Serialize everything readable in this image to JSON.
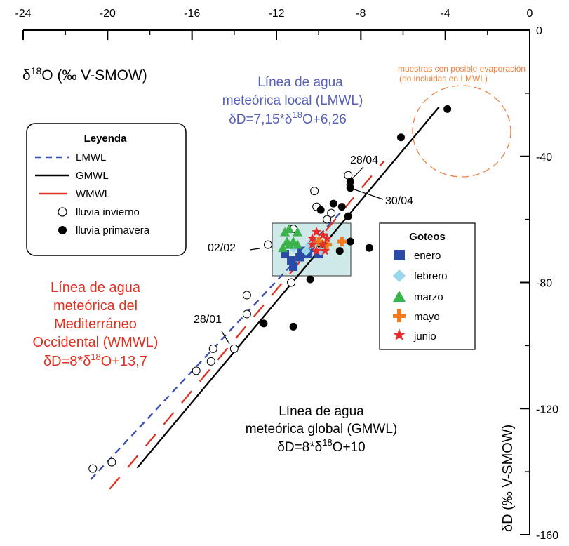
{
  "chart_data": {
    "type": "scatter",
    "x_axis": {
      "label_main": "δ",
      "label_sup": "18",
      "label_rest": "O (‰ V-SMOW)",
      "range": [
        -24,
        0
      ],
      "ticks": [
        "-24",
        "-20",
        "-16",
        "-12",
        "-8",
        "-4",
        "0"
      ]
    },
    "y_axis": {
      "label": "δD (‰ V-SMOW)",
      "range": [
        -160,
        0
      ],
      "ticks": [
        "0",
        "-40",
        "-80",
        "-120",
        "-160"
      ]
    },
    "lines": [
      {
        "name": "LMWL",
        "slope": 7.15,
        "intercept": 6.26,
        "x_range": [
          -20.8,
          -8.7
        ],
        "color": "#3b4fb0",
        "style": "dashed"
      },
      {
        "name": "GMWL",
        "slope": 8,
        "intercept": 10,
        "x_range": [
          -18.6,
          -4.3
        ],
        "color": "#000000",
        "style": "solid"
      },
      {
        "name": "WMWL",
        "slope": 8,
        "intercept": 13.7,
        "x_range": [
          -19.9,
          -6.9
        ],
        "color": "#e03020",
        "style": "long-dashed"
      }
    ],
    "annotations": {
      "lmwl": {
        "line1": "Línea de agua",
        "line2": "meteórica local (LMWL)",
        "eq_a": "δD=7,15*δ",
        "eq_sup": "18",
        "eq_b": "O+6,26",
        "color": "#5560b8"
      },
      "wmwl": {
        "line1": "Línea de agua",
        "line2": "meteórica del",
        "line3": "Mediterráneo",
        "line4": "Occidental (WMWL)",
        "eq_a": "δD=8*δ",
        "eq_sup": "18",
        "eq_b": "O+13,7",
        "color": "#e03020"
      },
      "gmwl": {
        "line1": "Línea de agua",
        "line2": "meteórica global (GMWL)",
        "eq_a": "δD=8*δ",
        "eq_sup": "18",
        "eq_b": "O+10",
        "color": "#000000"
      },
      "evaporation": {
        "line1": "muestras con posible evaporación",
        "line2": "(no incluidas en LMWL)",
        "color": "#f08040"
      },
      "dates": [
        "28/04",
        "30/04",
        "02/02",
        "28/01"
      ]
    },
    "legend": {
      "title": "Leyenda",
      "entries": [
        "LMWL",
        "GMWL",
        "WMWL",
        "lluvia invierno",
        "lluvia primavera"
      ]
    },
    "goteos_legend": {
      "title": "Goteos",
      "entries": [
        "enero",
        "febrero",
        "marzo",
        "mayo",
        "junio"
      ],
      "colors": [
        "#2b4aa8",
        "#9ad6ec",
        "#3cb34a",
        "#f07a20",
        "#e52d2d"
      ]
    },
    "box_color": "#cfe8e8",
    "lluvia_invierno": [
      [
        -20.7,
        -139
      ],
      [
        -19.8,
        -137
      ],
      [
        -15.8,
        -108
      ],
      [
        -15.1,
        -105
      ],
      [
        -15.0,
        -101
      ],
      [
        -14.0,
        -101
      ],
      [
        -13.4,
        -90
      ],
      [
        -13.4,
        -84
      ],
      [
        -12.4,
        -68
      ],
      [
        -11.3,
        -80
      ],
      [
        -11.2,
        -63
      ],
      [
        -10.2,
        -51
      ],
      [
        -10.1,
        -56
      ],
      [
        -9.6,
        -60
      ],
      [
        -9.4,
        -58
      ],
      [
        -8.6,
        -46
      ]
    ],
    "lluvia_primavera": [
      [
        -3.9,
        -25
      ],
      [
        -6.1,
        -34
      ],
      [
        -8.5,
        -48
      ],
      [
        -8.5,
        -50
      ],
      [
        -8.9,
        -56
      ],
      [
        -9.3,
        -55
      ],
      [
        -9.9,
        -57
      ],
      [
        -8.6,
        -59
      ],
      [
        -10.7,
        -70
      ],
      [
        -9.9,
        -68
      ],
      [
        -8.5,
        -67
      ],
      [
        -7.6,
        -69
      ],
      [
        -9.0,
        -70
      ],
      [
        -10.4,
        -79
      ],
      [
        -12.6,
        -93
      ],
      [
        -11.2,
        -94
      ]
    ],
    "goteos": {
      "enero": [
        [
          -11.2,
          -75
        ],
        [
          -11.3,
          -73
        ],
        [
          -10.9,
          -72
        ],
        [
          -10.8,
          -70
        ],
        [
          -10.5,
          -71
        ],
        [
          -10.3,
          -69
        ],
        [
          -10.0,
          -71
        ],
        [
          -11.6,
          -71
        ]
      ],
      "febrero": [
        [
          -10.2,
          -68
        ],
        [
          -10.6,
          -70
        ],
        [
          -9.9,
          -70
        ],
        [
          -11.2,
          -69
        ],
        [
          -10.4,
          -68
        ]
      ],
      "marzo": [
        [
          -11.4,
          -63
        ],
        [
          -11.0,
          -64
        ],
        [
          -11.6,
          -64
        ],
        [
          -11.5,
          -67
        ],
        [
          -11.2,
          -67
        ],
        [
          -11.4,
          -68
        ],
        [
          -11.0,
          -68
        ],
        [
          -11.7,
          -69
        ]
      ],
      "mayo": [
        [
          -10.0,
          -67
        ],
        [
          -9.6,
          -68
        ],
        [
          -8.9,
          -67
        ]
      ],
      "junio": [
        [
          -10.1,
          -64
        ],
        [
          -9.8,
          -65
        ],
        [
          -9.6,
          -66
        ],
        [
          -10.3,
          -66
        ],
        [
          -9.8,
          -68
        ],
        [
          -10.1,
          -70
        ],
        [
          -10.3,
          -68
        ],
        [
          -9.7,
          -70
        ]
      ]
    }
  }
}
